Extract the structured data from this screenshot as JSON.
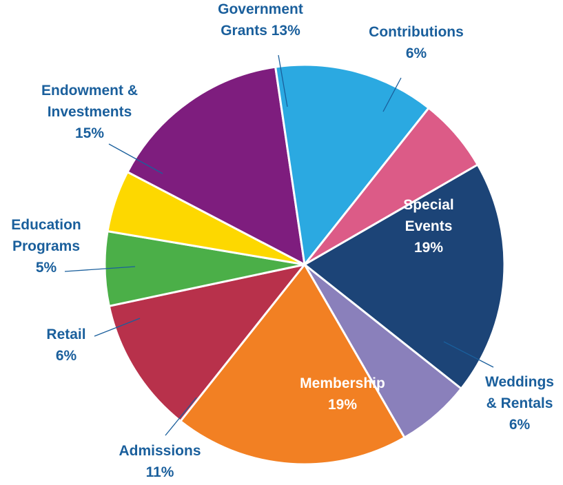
{
  "chart_data": {
    "type": "pie",
    "title": "",
    "label_color": "#1a5f9c",
    "slices": [
      {
        "key": "special_events",
        "label_lines": [
          "Special",
          "Events",
          "19%"
        ],
        "value": 19,
        "color": "#1c4477",
        "text_color": "#ffffff"
      },
      {
        "key": "weddings_rentals",
        "label_lines": [
          "Weddings",
          "& Rentals",
          "6%"
        ],
        "value": 6,
        "color": "#8a80bb",
        "text_color": "#1a5f9c"
      },
      {
        "key": "membership",
        "label_lines": [
          "Membership",
          "19%"
        ],
        "value": 19,
        "color": "#f28023",
        "text_color": "#ffffff"
      },
      {
        "key": "admissions",
        "label_lines": [
          "Admissions",
          "11%"
        ],
        "value": 11,
        "color": "#b8314b",
        "text_color": "#1a5f9c"
      },
      {
        "key": "retail",
        "label_lines": [
          "Retail",
          "6%"
        ],
        "value": 6,
        "color": "#4baf48",
        "text_color": "#1a5f9c"
      },
      {
        "key": "education_programs",
        "label_lines": [
          "Education",
          "Programs",
          "5%"
        ],
        "value": 5,
        "color": "#fdd800",
        "text_color": "#1a5f9c"
      },
      {
        "key": "endowment_investments",
        "label_lines": [
          "Endowment &",
          "Investments",
          "15%"
        ],
        "value": 15,
        "color": "#7e1d7e",
        "text_color": "#1a5f9c"
      },
      {
        "key": "government_grants",
        "label_lines": [
          "Government",
          "Grants 13%"
        ],
        "value": 13,
        "color": "#2ba9e1",
        "text_color": "#1a5f9c"
      },
      {
        "key": "contributions",
        "label_lines": [
          "Contributions",
          "6%"
        ],
        "value": 6,
        "color": "#dc5b87",
        "text_color": "#1a5f9c"
      }
    ]
  }
}
